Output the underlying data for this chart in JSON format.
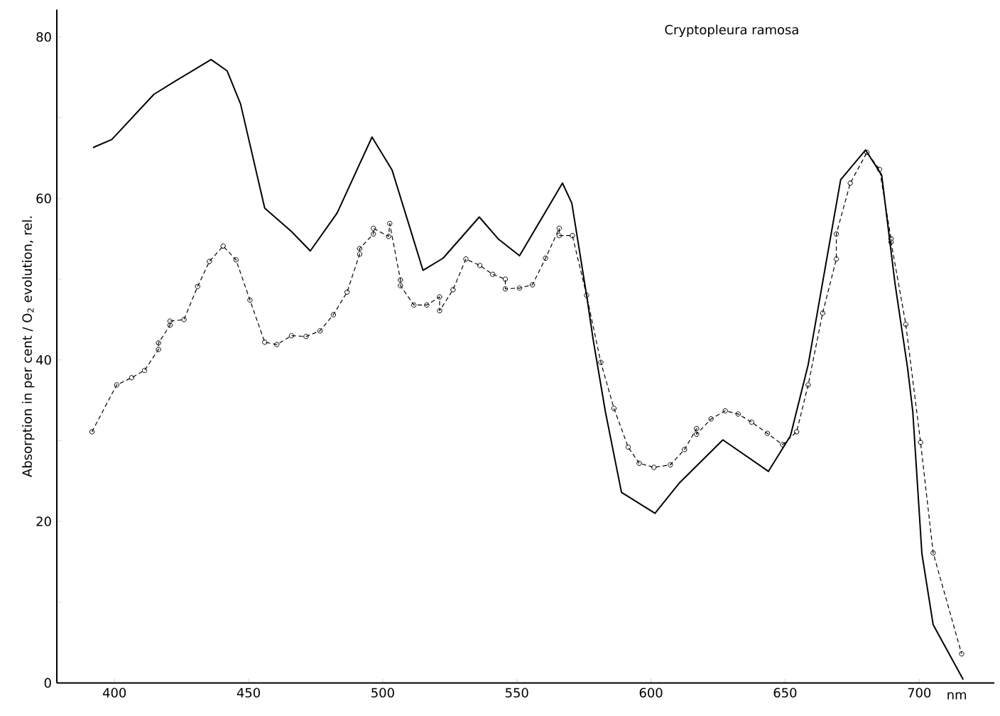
{
  "chart_data": {
    "type": "line",
    "title": "Cryptopleura ramosa",
    "xlabel": "nm",
    "ylabel": "Absorption in per cent / O$_{2}$ evolution, rel.",
    "xlim": [
      378.5,
      728
    ],
    "ylim": [
      0,
      83.4
    ],
    "xticks": [
      400,
      450,
      500,
      550,
      600,
      650,
      700
    ],
    "yticks": [
      0,
      {
        "value": 10,
        "label": null
      },
      20,
      {
        "value": 30,
        "label": null
      },
      40,
      {
        "value": 50,
        "label": null
      },
      60,
      {
        "value": 70,
        "label": null
      },
      80
    ],
    "series": [
      {
        "color": "#000000",
        "marker": "none",
        "line_style": "solid",
        "x": [
          392,
          399,
          414.7,
          423,
          436,
          442,
          447,
          456,
          466,
          473,
          483,
          496,
          503.5,
          510,
          515,
          522.5,
          536,
          543,
          551,
          567,
          570.5,
          576,
          578.5,
          583,
          589,
          601.5,
          610.7,
          626.8,
          643.8,
          652,
          658.6,
          670.7,
          680,
          686,
          691,
          695.7,
          697.6,
          701,
          705.2,
          716.4
        ],
        "values": [
          66.3,
          67.3,
          72.9,
          74.6,
          77.2,
          75.8,
          71.7,
          58.8,
          55.9,
          53.5,
          58.2,
          67.6,
          63.5,
          56.5,
          51.1,
          52.6,
          57.7,
          55.0,
          52.9,
          61.9,
          59.4,
          48.0,
          42.4,
          33.6,
          23.6,
          21.0,
          24.8,
          30.1,
          26.2,
          30.6,
          39.4,
          62.3,
          66.0,
          62.9,
          49.4,
          38.9,
          33.6,
          16.0,
          7.2,
          0.4
        ]
      },
      {
        "color": "#000000",
        "marker": "circle",
        "line_style": "dashed",
        "x": [
          391.6,
          400.8,
          406.4,
          411.2,
          416.4,
          416.4,
          420.7,
          420.7,
          425.9,
          431,
          435.4,
          440.5,
          445.3,
          450.5,
          456,
          460.5,
          466,
          471.4,
          476.6,
          481.6,
          486.7,
          491.4,
          491.4,
          496.5,
          496.5,
          502.2,
          502.6,
          506.6,
          506.6,
          511.6,
          516.4,
          521.2,
          521.2,
          526.2,
          531,
          536.2,
          541,
          545.7,
          545.7,
          551,
          555.8,
          560.7,
          565.8,
          565.8,
          570.7,
          576,
          581.3,
          586.2,
          591.5,
          595.6,
          601.1,
          607.2,
          612.5,
          617,
          617,
          622.4,
          627.7,
          632.5,
          637.5,
          643.4,
          649.1,
          654.3,
          658.6,
          664,
          669.1,
          669.1,
          674.3,
          680.5,
          685.2,
          689.5,
          689.5,
          695,
          700.5,
          705.2,
          715.8
        ],
        "values": [
          31.1,
          36.9,
          37.8,
          38.7,
          41.3,
          42.1,
          44.3,
          44.8,
          45.0,
          49.1,
          52.2,
          54.1,
          52.4,
          47.4,
          42.2,
          41.9,
          43.0,
          42.9,
          43.6,
          45.6,
          48.4,
          53.1,
          53.8,
          55.6,
          56.3,
          55.3,
          56.9,
          49.9,
          49.2,
          46.8,
          46.8,
          47.8,
          46.1,
          48.7,
          52.5,
          51.7,
          50.6,
          50.0,
          48.8,
          48.9,
          49.3,
          52.6,
          56.3,
          55.4,
          55.4,
          48.0,
          39.7,
          34.0,
          29.2,
          27.2,
          26.7,
          27.0,
          28.9,
          31.5,
          30.8,
          32.7,
          33.7,
          33.3,
          32.3,
          30.9,
          29.5,
          31.1,
          36.9,
          45.8,
          52.5,
          55.6,
          61.9,
          65.7,
          63.6,
          55.0,
          54.6,
          44.4,
          29.8,
          16.1,
          3.6
        ]
      }
    ]
  }
}
